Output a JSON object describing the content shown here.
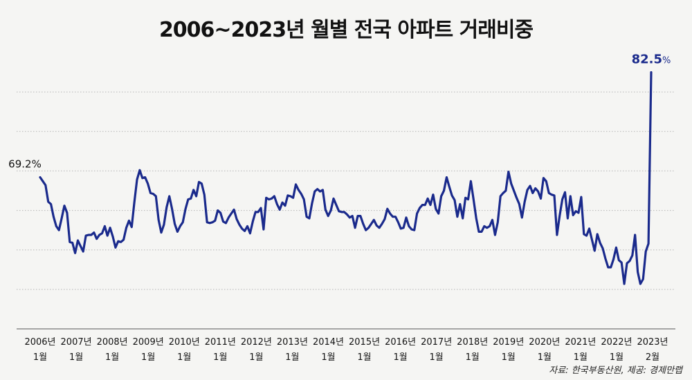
{
  "chart_data": {
    "type": "line",
    "title": "2006~2023년 월별 전국 아파트 거래비중",
    "source": "자료: 한국부동산원, 제공: 경제만랩",
    "x_labels": [
      {
        "year": "2006년",
        "month": "1월"
      },
      {
        "year": "2007년",
        "month": "1월"
      },
      {
        "year": "2008년",
        "month": "1월"
      },
      {
        "year": "2009년",
        "month": "1월"
      },
      {
        "year": "2010년",
        "month": "1월"
      },
      {
        "year": "2011년",
        "month": "1월"
      },
      {
        "year": "2012년",
        "month": "1월"
      },
      {
        "year": "2013년",
        "month": "1월"
      },
      {
        "year": "2014년",
        "month": "1월"
      },
      {
        "year": "2015년",
        "month": "1월"
      },
      {
        "year": "2016년",
        "month": "1월"
      },
      {
        "year": "2017년",
        "month": "1월"
      },
      {
        "year": "2018년",
        "month": "1월"
      },
      {
        "year": "2019년",
        "month": "1월"
      },
      {
        "year": "2020년",
        "month": "1월"
      },
      {
        "year": "2021년",
        "month": "1월"
      },
      {
        "year": "2022년",
        "month": "1월"
      },
      {
        "year": "2023년",
        "month": "2월"
      }
    ],
    "ylim": [
      50,
      85
    ],
    "gridlines": [
      55,
      60,
      65,
      70,
      75,
      80
    ],
    "start_label": "69.2%",
    "end_label_value": "82.5",
    "end_label_unit": "%",
    "line_color": "#1a2a8c",
    "values": [
      69.2,
      68.7,
      68.2,
      66.1,
      65.8,
      64.2,
      63.0,
      62.5,
      64.0,
      65.6,
      64.7,
      61.0,
      60.9,
      59.6,
      61.2,
      60.5,
      59.8,
      61.8,
      61.9,
      61.9,
      62.2,
      61.4,
      61.9,
      62.1,
      63.0,
      61.8,
      62.8,
      61.7,
      60.3,
      61.1,
      61.0,
      61.3,
      62.8,
      63.7,
      62.9,
      66.0,
      68.9,
      70.1,
      69.1,
      69.2,
      68.4,
      67.2,
      67.1,
      66.8,
      63.8,
      62.2,
      63.2,
      65.4,
      66.8,
      65.2,
      63.3,
      62.3,
      63.0,
      63.5,
      65.2,
      66.4,
      66.5,
      67.6,
      66.8,
      68.6,
      68.4,
      67.0,
      63.5,
      63.4,
      63.5,
      63.7,
      65.0,
      64.7,
      63.6,
      63.4,
      64.1,
      64.6,
      65.1,
      63.9,
      63.2,
      62.7,
      62.4,
      63.0,
      62.1,
      63.6,
      64.8,
      64.8,
      65.3,
      62.6,
      66.6,
      66.4,
      66.5,
      66.8,
      65.8,
      65.1,
      66.0,
      65.6,
      66.9,
      66.8,
      66.6,
      68.3,
      67.6,
      67.1,
      66.4,
      64.2,
      64.0,
      65.9,
      67.4,
      67.7,
      67.4,
      67.6,
      65.1,
      64.3,
      65.0,
      66.5,
      65.7,
      64.9,
      64.8,
      64.8,
      64.5,
      64.1,
      64.3,
      62.8,
      64.3,
      64.3,
      63.3,
      62.5,
      62.8,
      63.3,
      63.8,
      63.1,
      62.8,
      63.3,
      63.9,
      65.2,
      64.6,
      64.2,
      64.2,
      63.5,
      62.7,
      62.8,
      64.1,
      63.0,
      62.6,
      62.5,
      64.6,
      65.3,
      65.7,
      65.7,
      66.5,
      65.7,
      67.0,
      65.2,
      64.6,
      66.8,
      67.5,
      69.2,
      68.0,
      66.9,
      66.3,
      64.2,
      65.8,
      64.0,
      66.6,
      66.4,
      68.7,
      66.4,
      64.0,
      62.3,
      62.3,
      63.0,
      62.8,
      63.0,
      63.8,
      61.9,
      63.5,
      66.8,
      67.2,
      67.5,
      69.9,
      68.4,
      67.5,
      66.6,
      65.8,
      64.1,
      66.1,
      67.6,
      68.1,
      67.2,
      67.8,
      67.4,
      66.5,
      69.1,
      68.7,
      67.2,
      67.0,
      66.9,
      61.9,
      64.3,
      66.4,
      67.3,
      64.0,
      66.8,
      64.4,
      64.9,
      64.7,
      66.7,
      62.0,
      61.8,
      62.7,
      61.3,
      59.9,
      62.0,
      60.9,
      60.2,
      58.9,
      57.8,
      57.8,
      58.8,
      60.3,
      58.7,
      58.4,
      55.7,
      58.3,
      58.6,
      59.3,
      61.9,
      57.2,
      55.7,
      56.3,
      59.8,
      60.8,
      82.5
    ]
  }
}
